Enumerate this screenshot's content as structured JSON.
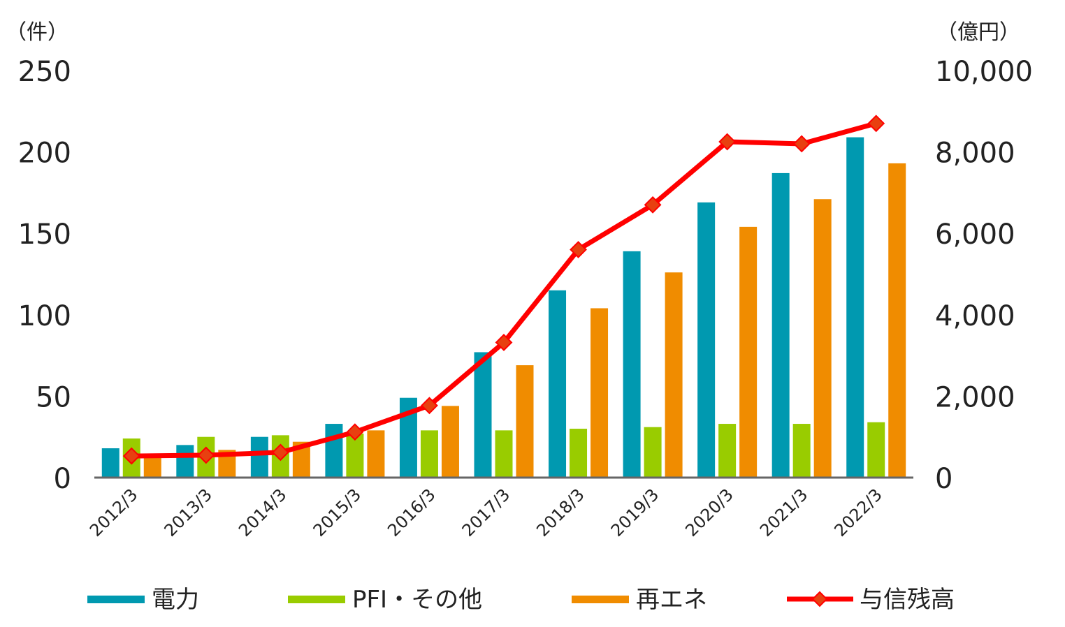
{
  "chart_data": {
    "type": "bar",
    "categories": [
      "2012/3",
      "2013/3",
      "2014/3",
      "2015/3",
      "2016/3",
      "2017/3",
      "2018/3",
      "2019/3",
      "2020/3",
      "2021/3",
      "2022/3"
    ],
    "series": [
      {
        "name": "電力",
        "type": "bar",
        "axis": "left",
        "color": "#0099B0",
        "values": [
          18,
          20,
          25,
          33,
          49,
          77,
          115,
          139,
          169,
          187,
          209
        ]
      },
      {
        "name": "PFI・その他",
        "type": "bar",
        "axis": "left",
        "color": "#99CC00",
        "values": [
          24,
          25,
          26,
          27,
          29,
          29,
          30,
          31,
          33,
          33,
          34
        ]
      },
      {
        "name": "再エネ",
        "type": "bar",
        "axis": "left",
        "color": "#F08C00",
        "values": [
          12,
          17,
          22,
          29,
          44,
          69,
          104,
          126,
          154,
          171,
          193
        ]
      },
      {
        "name": "与信残高",
        "type": "line",
        "axis": "right",
        "color": "#FF0000",
        "marker_color": "#E84010",
        "values": [
          530,
          550,
          620,
          1120,
          1770,
          3320,
          5600,
          6700,
          8250,
          8200,
          8700
        ]
      }
    ],
    "left_axis": {
      "unit_label": "（件）",
      "ylim": [
        0,
        250
      ],
      "ticks": [
        "0",
        "50",
        "100",
        "150",
        "200",
        "250"
      ]
    },
    "right_axis": {
      "unit_label": "（億円）",
      "ylim": [
        0,
        10000
      ],
      "ticks": [
        "0",
        "2,000",
        "4,000",
        "6,000",
        "8,000",
        "10,000"
      ]
    },
    "grid": false,
    "legend_position": "bottom"
  }
}
